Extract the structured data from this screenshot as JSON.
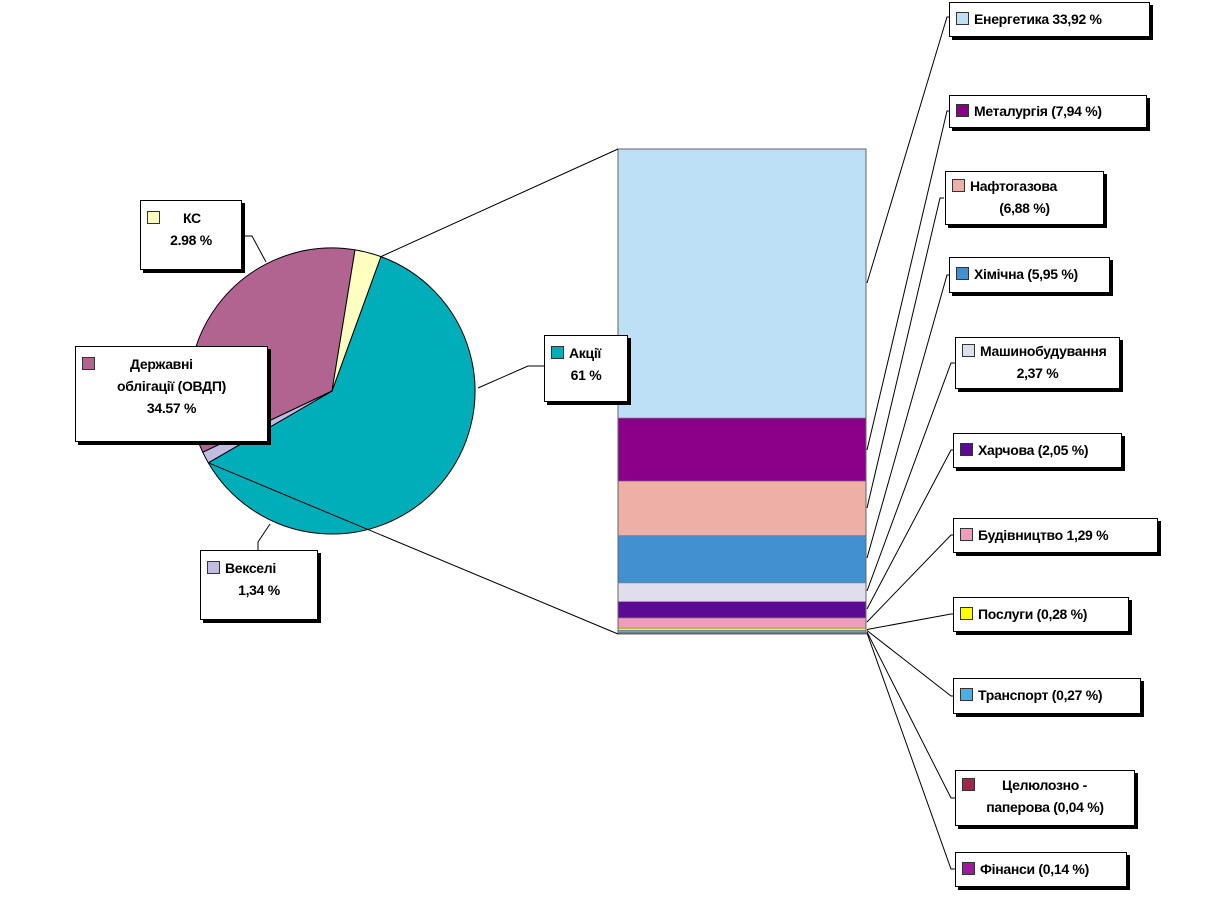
{
  "chart_data": {
    "type": "bar-of-pie",
    "pie": [
      {
        "name": "Акції",
        "label_line1": "Акції",
        "label_line2": "61 %",
        "value": 61,
        "color": "#00AEB9"
      },
      {
        "name": "Векселі",
        "label_line1": "Векселі",
        "label_line2": "1,34 %",
        "value": 1.34,
        "color": "#C2BCE2"
      },
      {
        "name": "Державні облігації (ОВДП)",
        "label_line1": "Державні",
        "label_line2": "облігації (ОВДП)",
        "label_line3": "34.57 %",
        "value": 34.57,
        "color": "#B0648F"
      },
      {
        "name": "КС",
        "label_line1": "КС",
        "label_line2": "2.98 %",
        "value": 2.98,
        "color": "#FFFFC0"
      }
    ],
    "bar": [
      {
        "name": "Енергетика",
        "label_line1": "Енергетика 33,92 %",
        "value": 33.92,
        "color": "#BDE0F7"
      },
      {
        "name": "Металургія",
        "label_line1": "Металургія (7,94 %)",
        "value": 7.94,
        "color": "#8B0088"
      },
      {
        "name": "Нафтогазова",
        "label_line1": "Нафтогазова",
        "label_line2": "(6,88 %)",
        "value": 6.88,
        "color": "#EDB0A7"
      },
      {
        "name": "Хімічна",
        "label_line1": "Хімічна (5,95 %)",
        "value": 5.95,
        "color": "#4390D0"
      },
      {
        "name": "Машинобудування",
        "label_line1": "Машинобудування",
        "label_line2": "2,37 %",
        "value": 2.37,
        "color": "#DEDEEC"
      },
      {
        "name": "Харчова",
        "label_line1": "Харчова (2,05 %)",
        "value": 2.05,
        "color": "#5B0A94"
      },
      {
        "name": "Будівництво",
        "label_line1": "Будівництво 1,29 %",
        "value": 1.29,
        "color": "#EE9DBD"
      },
      {
        "name": "Послуги",
        "label_line1": "Послуги (0,28 %)",
        "value": 0.28,
        "color": "#FFFF00"
      },
      {
        "name": "Транспорт",
        "label_line1": "Транспорт (0,27 %)",
        "value": 0.27,
        "color": "#46B0E8"
      },
      {
        "name": "Целюлозно-паперова",
        "label_line1": "Целюлозно -",
        "label_line2": "паперова (0,04 %)",
        "value": 0.04,
        "color": "#A3254A"
      },
      {
        "name": "Фінанси",
        "label_line1": "Фінанси (0,14 %)",
        "value": 0.14,
        "color": "#A0189E"
      }
    ]
  }
}
